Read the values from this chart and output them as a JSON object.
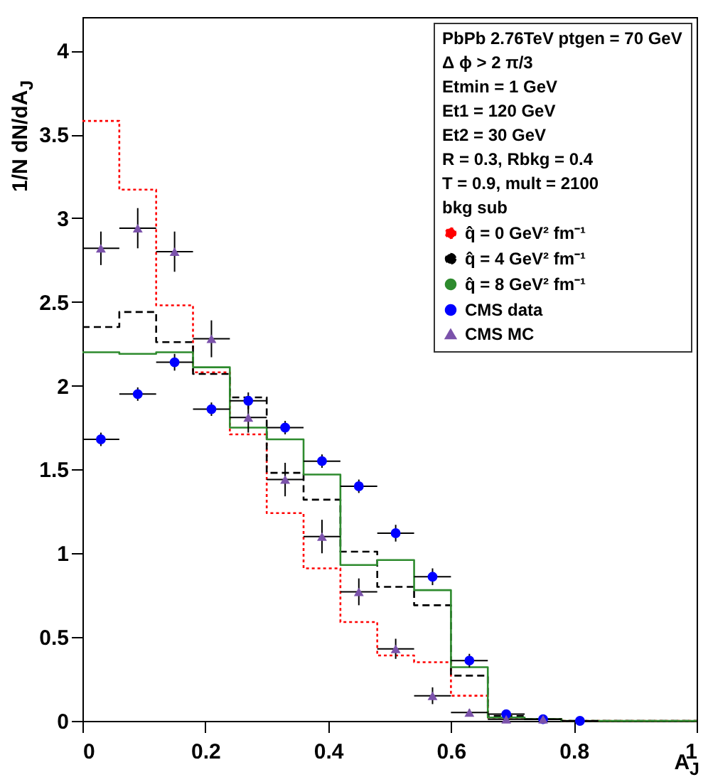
{
  "chart_data": {
    "type": "histogram",
    "xlabel": "A$_{J}$",
    "ylabel": "1/N dN/dA$_{J}$",
    "legend_title": "PbPb 2.76TeV ptgen = 70 GeV",
    "annotations": [
      "Δ ϕ > 2 π/3",
      "Etmin = 1 GeV",
      "Et1 = 120 GeV",
      "Et2 = 30 GeV",
      "R = 0.3, Rbkg = 0.4",
      "T = 0.9, mult = 2100",
      "bkg sub"
    ],
    "bins": [
      0,
      0.06,
      0.12,
      0.18,
      0.24,
      0.3,
      0.36,
      0.42,
      0.48,
      0.54,
      0.6,
      0.66,
      0.72,
      0.78,
      0.84,
      1.0
    ],
    "series": [
      {
        "name": "q̂ = 0 GeV² fm⁻¹",
        "color": "#ff0000",
        "line_style": "dotted",
        "values": [
          3.58,
          3.17,
          2.48,
          2.08,
          1.71,
          1.24,
          0.91,
          0.59,
          0.39,
          0.35,
          0.15,
          0.02,
          0.01,
          0,
          0
        ]
      },
      {
        "name": "q̂ = 4 GeV² fm⁻¹",
        "color": "#000000",
        "line_style": "dashed",
        "values": [
          2.35,
          2.44,
          2.26,
          2.07,
          1.93,
          1.48,
          1.32,
          1.01,
          0.8,
          0.69,
          0.27,
          0.03,
          0.01,
          0,
          0
        ]
      },
      {
        "name": "q̂ = 8 GeV² fm⁻¹",
        "color": "#2e8b2e",
        "line_style": "solid",
        "values": [
          2.2,
          2.19,
          2.2,
          2.11,
          1.75,
          1.68,
          1.47,
          0.93,
          0.96,
          0.78,
          0.32,
          0.02,
          0.01,
          0,
          0
        ]
      },
      {
        "type": "scatter",
        "name": "CMS data",
        "color": "#0000ff",
        "marker": "circle",
        "x": [
          0.03,
          0.09,
          0.15,
          0.21,
          0.27,
          0.33,
          0.39,
          0.45,
          0.51,
          0.57,
          0.63,
          0.69,
          0.75,
          0.81
        ],
        "values": [
          1.68,
          1.95,
          2.14,
          1.86,
          1.91,
          1.75,
          1.55,
          1.4,
          1.12,
          0.86,
          0.36,
          0.04,
          0.01,
          0
        ],
        "errors": [
          0.04,
          0.04,
          0.05,
          0.04,
          0.05,
          0.04,
          0.04,
          0.04,
          0.05,
          0.05,
          0.04,
          0.01,
          0.01,
          0.01
        ],
        "xerrors": [
          0.03,
          0.03,
          0.03,
          0.03,
          0.03,
          0.03,
          0.03,
          0.03,
          0.03,
          0.03,
          0.03,
          0.03,
          0.03,
          0.03
        ]
      },
      {
        "type": "scatter",
        "name": "CMS MC",
        "color": "#7b52ab",
        "marker": "triangle",
        "x": [
          0.03,
          0.09,
          0.15,
          0.21,
          0.27,
          0.33,
          0.39,
          0.45,
          0.51,
          0.57,
          0.63,
          0.69,
          0.75
        ],
        "values": [
          2.82,
          2.94,
          2.8,
          2.28,
          1.81,
          1.44,
          1.1,
          0.77,
          0.43,
          0.15,
          0.05,
          0.01,
          0.01
        ],
        "errors": [
          0.1,
          0.12,
          0.12,
          0.11,
          0.09,
          0.1,
          0.1,
          0.08,
          0.06,
          0.05,
          0.02,
          0.01,
          0.01
        ],
        "xerrors": [
          0.03,
          0.03,
          0.03,
          0.03,
          0.03,
          0.03,
          0.03,
          0.03,
          0.03,
          0.03,
          0.03,
          0.03,
          0.03
        ]
      }
    ],
    "xlim": [
      0,
      1
    ],
    "xticks": [
      {
        "value": 0,
        "label": "0"
      },
      0.2,
      0.4,
      0.6,
      0.8,
      {
        "value": 1,
        "label": "1"
      }
    ],
    "ylim": [
      0,
      4.2
    ],
    "yticks": [
      {
        "value": 0,
        "label": "0"
      },
      0.5,
      {
        "value": 1,
        "label": "1"
      },
      1.5,
      {
        "value": 2,
        "label": "2"
      },
      2.5,
      {
        "value": 3,
        "label": "3"
      },
      3.5,
      {
        "value": 4,
        "label": "4"
      }
    ],
    "legend": "top right",
    "grid": false
  }
}
